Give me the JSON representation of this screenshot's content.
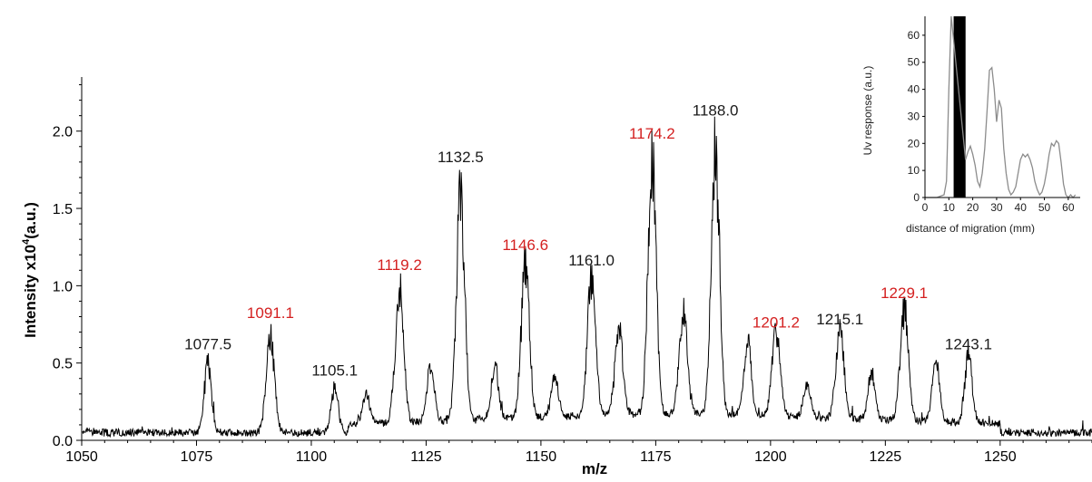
{
  "chart_data": [
    {
      "type": "line",
      "title": "",
      "xlabel": "m/z",
      "ylabel": "Intensity x10",
      "ylabel_sup": "4",
      "ylabel_unit": "(a.u.)",
      "xlim": [
        1050,
        1270
      ],
      "ylim": [
        0.0,
        2.35
      ],
      "x_ticks": [
        1050,
        1075,
        1100,
        1125,
        1150,
        1175,
        1200,
        1225,
        1250
      ],
      "x_tick_labels": [
        "1050",
        "1075",
        "1100",
        "1125",
        "1150",
        "1175",
        "1200",
        "1225",
        "1250"
      ],
      "y_ticks": [
        0.0,
        0.5,
        1.0,
        1.5,
        2.0
      ],
      "y_tick_labels": [
        "0.0",
        "0.5",
        "1.0",
        "1.5",
        "2.0"
      ],
      "grid": false,
      "colors": {
        "line": "#000000",
        "label_black": "#1a1a1a",
        "label_red": "#d42020"
      },
      "peaks": [
        {
          "mz": 1077.5,
          "height": 0.52,
          "label": "1077.5",
          "color": "black"
        },
        {
          "mz": 1091.1,
          "height": 0.72,
          "label": "1091.1",
          "color": "red"
        },
        {
          "mz": 1105.1,
          "height": 0.35,
          "label": "1105.1",
          "color": "black"
        },
        {
          "mz": 1119.2,
          "height": 1.03,
          "label": "1119.2",
          "color": "red"
        },
        {
          "mz": 1132.5,
          "height": 1.73,
          "label": "1132.5",
          "color": "black"
        },
        {
          "mz": 1146.6,
          "height": 1.16,
          "label": "1146.6",
          "color": "red"
        },
        {
          "mz": 1161.0,
          "height": 1.06,
          "label": "1161.0",
          "color": "black"
        },
        {
          "mz": 1174.2,
          "height": 1.88,
          "label": "1174.2",
          "color": "red"
        },
        {
          "mz": 1188.0,
          "height": 2.03,
          "label": "1188.0",
          "color": "black"
        },
        {
          "mz": 1201.2,
          "height": 0.66,
          "label": "1201.2",
          "color": "red"
        },
        {
          "mz": 1215.1,
          "height": 0.68,
          "label": "1215.1",
          "color": "black"
        },
        {
          "mz": 1229.1,
          "height": 0.85,
          "label": "1229.1",
          "color": "red"
        },
        {
          "mz": 1243.1,
          "height": 0.52,
          "label": "1243.1",
          "color": "black"
        }
      ],
      "minor_peaks": [
        {
          "mz": 1112.0,
          "height": 0.22
        },
        {
          "mz": 1126.0,
          "height": 0.45
        },
        {
          "mz": 1140.0,
          "height": 0.4
        },
        {
          "mz": 1153.0,
          "height": 0.3
        },
        {
          "mz": 1167.0,
          "height": 0.62
        },
        {
          "mz": 1181.0,
          "height": 0.78
        },
        {
          "mz": 1195.0,
          "height": 0.55
        },
        {
          "mz": 1208.0,
          "height": 0.25
        },
        {
          "mz": 1222.0,
          "height": 0.35
        },
        {
          "mz": 1236.0,
          "height": 0.45
        }
      ]
    },
    {
      "type": "line",
      "title": "",
      "xlabel": "distance of migration (mm)",
      "ylabel": "Uv response (a.u.)",
      "xlim": [
        0,
        65
      ],
      "ylim": [
        0,
        67
      ],
      "x_ticks": [
        0,
        10,
        20,
        30,
        40,
        50,
        60
      ],
      "x_tick_labels": [
        "0",
        "10",
        "20",
        "30",
        "40",
        "50",
        "60"
      ],
      "y_ticks": [
        0,
        10,
        20,
        30,
        40,
        50,
        60
      ],
      "y_tick_labels": [
        "0",
        "10",
        "20",
        "30",
        "40",
        "50",
        "60"
      ],
      "grid": false,
      "colors": {
        "trace": "#8c8c8c",
        "band": "#000000"
      },
      "shaded_band": [
        12,
        17
      ],
      "x": [
        0,
        5,
        8,
        9,
        10,
        11,
        17,
        18,
        19,
        20,
        21,
        22,
        23,
        24,
        25,
        26,
        27,
        28,
        29,
        30,
        31,
        32,
        33,
        34,
        35,
        36,
        37,
        38,
        39,
        40,
        41,
        42,
        43,
        44,
        45,
        46,
        47,
        48,
        49,
        50,
        51,
        52,
        53,
        54,
        55,
        56,
        57,
        58,
        59,
        60,
        61,
        62,
        63
      ],
      "y": [
        0,
        0,
        1,
        6,
        40,
        67,
        14,
        17,
        19,
        16,
        12,
        6,
        4,
        9,
        18,
        32,
        47,
        48,
        40,
        28,
        36,
        33,
        18,
        9,
        3,
        1,
        2,
        4,
        9,
        14,
        16,
        15,
        16,
        14,
        11,
        6,
        3,
        1,
        2,
        5,
        10,
        16,
        20,
        19,
        21,
        20,
        13,
        5,
        1,
        0,
        1,
        0,
        1
      ]
    }
  ]
}
